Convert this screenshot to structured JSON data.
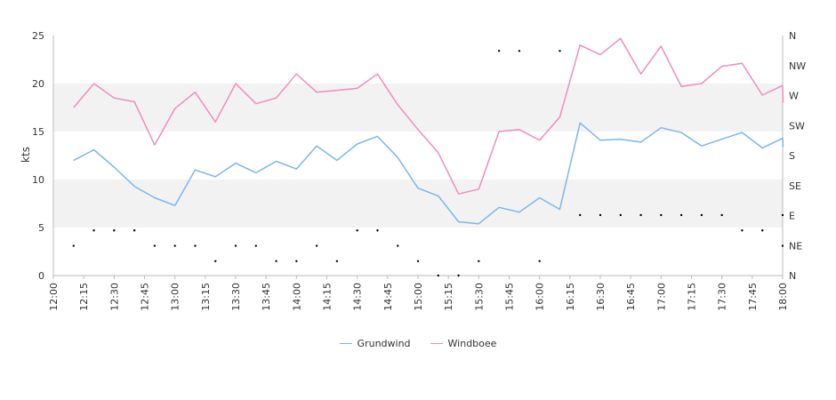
{
  "chart_data": {
    "type": "line",
    "xlabel": "",
    "ylabel": "kts",
    "ylim": [
      0,
      25
    ],
    "y_ticks": [
      "0",
      "5",
      "10",
      "15",
      "20",
      "25"
    ],
    "x_ticks": [
      "12:00",
      "12:15",
      "12:30",
      "12:45",
      "13:00",
      "13:15",
      "13:30",
      "13:45",
      "14:00",
      "14:15",
      "14:30",
      "14:45",
      "15:00",
      "15:15",
      "15:30",
      "15:45",
      "16:00",
      "16:15",
      "16:30",
      "16:45",
      "17:00",
      "17:15",
      "17:30",
      "17:45",
      "18:00"
    ],
    "x_range": [
      "12:00",
      "18:00"
    ],
    "direction_axis_labels": [
      "N",
      "NE",
      "E",
      "SE",
      "S",
      "SW",
      "W",
      "NW",
      "N"
    ],
    "grid": "alternating horizontal bands",
    "legend_position": "bottom-center",
    "colors": {
      "Grundwind": "#7ab6f0",
      "Windboee": "#f08cc0",
      "band": "#f2f2f2",
      "axis": "#bbbbbb",
      "direction_dot": "#000000"
    },
    "times": [
      "12:05",
      "12:10",
      "12:15",
      "12:20",
      "12:25",
      "12:30",
      "12:35",
      "12:40",
      "12:45",
      "12:50",
      "12:55",
      "13:00",
      "13:05",
      "13:10",
      "13:15",
      "13:20",
      "13:25",
      "13:30",
      "13:35",
      "13:40",
      "13:45",
      "13:50",
      "13:55",
      "14:00",
      "14:05",
      "14:10",
      "14:15",
      "14:20",
      "14:25",
      "14:30",
      "14:35",
      "14:40",
      "14:45",
      "14:50",
      "14:55",
      "15:00",
      "15:05",
      "15:10",
      "15:15",
      "15:20",
      "15:25",
      "15:30",
      "15:35",
      "15:40",
      "15:45",
      "15:50",
      "15:55",
      "16:00",
      "16:05",
      "16:10",
      "16:15",
      "16:20",
      "16:25",
      "16:30",
      "16:35",
      "16:40",
      "16:45",
      "16:50",
      "16:55",
      "17:00",
      "17:05",
      "17:10",
      "17:15",
      "17:20",
      "17:25",
      "17:30",
      "17:35",
      "17:40",
      "17:45",
      "17:50",
      "17:55",
      "18:00"
    ],
    "series": [
      {
        "name": "Grundwind",
        "values": [
          12,
          13.1,
          11.3,
          9.3,
          8.1,
          7.3,
          11,
          10.3,
          11.7,
          10.7,
          11.9,
          11.1,
          13.5,
          12,
          13.7,
          14.5,
          12.3,
          9.1,
          8.3,
          5.6,
          5.4,
          7.1,
          6.6,
          8.1,
          6.9,
          15.9,
          14.1,
          14.2,
          13.9,
          15.4,
          14.9,
          13.5,
          14.2,
          14.9,
          13.3,
          14.3,
          13.4
        ]
      },
      {
        "name": "Windboee",
        "values": [
          17.5,
          20,
          18.5,
          18.1,
          13.6,
          17.4,
          19.1,
          16,
          20,
          17.9,
          18.5,
          21,
          19.1,
          19.3,
          19.5,
          21,
          17.8,
          15.2,
          12.8,
          8.5,
          9,
          15,
          15.2,
          14.1,
          16.5,
          24,
          23,
          24.7,
          21,
          23.9,
          19.7,
          20,
          21.8,
          22.1,
          18.8,
          19.8,
          18
        ]
      }
    ],
    "series_times": [
      "12:10",
      "12:20",
      "12:30",
      "12:40",
      "12:50",
      "13:00",
      "13:10",
      "13:20",
      "13:30",
      "13:40",
      "13:50",
      "14:00",
      "14:10",
      "14:20",
      "14:30",
      "14:40",
      "14:50",
      "15:00",
      "15:10",
      "15:20",
      "15:30",
      "15:40",
      "15:50",
      "16:00",
      "16:10",
      "16:20",
      "16:30",
      "16:40",
      "16:50",
      "17:00",
      "17:10",
      "17:20",
      "17:30",
      "17:40",
      "17:50",
      "18:00",
      "18:00"
    ],
    "direction_times": [
      "12:10",
      "12:20",
      "12:30",
      "12:40",
      "12:50",
      "13:00",
      "13:10",
      "13:20",
      "13:30",
      "13:40",
      "13:50",
      "14:00",
      "14:10",
      "14:20",
      "14:30",
      "14:40",
      "14:50",
      "15:00",
      "15:10",
      "15:20",
      "15:30",
      "15:40",
      "15:50",
      "16:00",
      "16:10",
      "16:20",
      "16:30",
      "16:40",
      "16:50",
      "17:00",
      "17:10",
      "17:20",
      "17:30",
      "17:40",
      "17:50",
      "18:00",
      "18:00"
    ],
    "direction_values": [
      "NE",
      "E",
      "E",
      "E",
      "NE",
      "NE",
      "NE",
      "N",
      "NE",
      "NE",
      "N",
      "N",
      "NE",
      "N",
      "E",
      "E",
      "NE",
      "N",
      "N",
      "N",
      "N",
      "N",
      "N",
      "N",
      "N",
      "E",
      "E",
      "E",
      "E",
      "E",
      "E",
      "E",
      "E",
      "E",
      "E",
      "E",
      "NE"
    ],
    "direction_kts": [
      3.1,
      4.7,
      4.7,
      4.7,
      3.1,
      3.1,
      3.1,
      1.5,
      3.1,
      3.1,
      1.5,
      1.5,
      3.1,
      1.5,
      4.7,
      4.7,
      3.1,
      1.5,
      0,
      0,
      1.5,
      23.4,
      23.4,
      1.5,
      23.4,
      6.3,
      6.3,
      6.3,
      6.3,
      6.3,
      6.3,
      6.3,
      6.3,
      4.7,
      4.7,
      6.3,
      3.1
    ]
  },
  "legend": [
    {
      "label": "Grundwind",
      "color": "#7ab6f0"
    },
    {
      "label": "Windboee",
      "color": "#f08cc0"
    }
  ]
}
